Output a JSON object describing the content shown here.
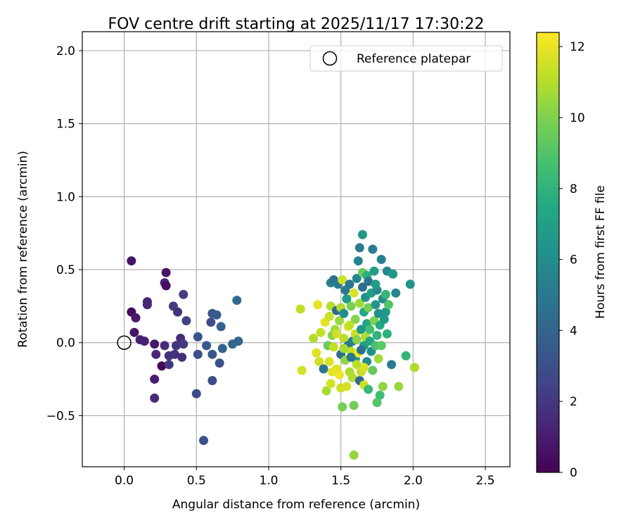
{
  "chart_data": {
    "type": "scatter",
    "title": "FOV centre drift starting at 2025/11/17 17:30:22",
    "xlabel": "Angular distance from reference (arcmin)",
    "ylabel": "Rotation from reference (arcmin)",
    "xlim": [
      -0.29,
      2.67
    ],
    "ylim": [
      -0.85,
      2.13
    ],
    "xticks": [
      0.0,
      0.5,
      1.0,
      1.5,
      2.0,
      2.5
    ],
    "xtick_labels": [
      "0.0",
      "0.5",
      "1.0",
      "1.5",
      "2.0",
      "2.5"
    ],
    "yticks": [
      -0.5,
      0.0,
      0.5,
      1.0,
      1.5,
      2.0
    ],
    "ytick_labels": [
      "−0.5",
      "0.0",
      "0.5",
      "1.0",
      "1.5",
      "2.0"
    ],
    "grid": true,
    "legend": {
      "location": "top-right",
      "entries": [
        "Reference platepar"
      ]
    },
    "reference_point": {
      "x": 0.0,
      "y": 0.0,
      "label": "Reference platepar",
      "marker": "open-circle"
    },
    "colorbar": {
      "label": "Hours from first FF file",
      "colormap": "viridis",
      "range": [
        0,
        12.4
      ],
      "ticks": [
        0,
        2,
        4,
        6,
        8,
        10,
        12
      ],
      "tick_labels": [
        "0",
        "2",
        "4",
        "6",
        "8",
        "10",
        "12"
      ]
    },
    "points": [
      {
        "x": 0.05,
        "y": 0.56,
        "h": 0.6
      },
      {
        "x": 0.05,
        "y": 0.21,
        "h": 0.4
      },
      {
        "x": 0.07,
        "y": 0.07,
        "h": 0.7
      },
      {
        "x": 0.08,
        "y": 0.17,
        "h": 0.9
      },
      {
        "x": 0.11,
        "y": 0.02,
        "h": 1.0
      },
      {
        "x": 0.14,
        "y": 0.01,
        "h": 1.1
      },
      {
        "x": 0.16,
        "y": 0.28,
        "h": 1.3
      },
      {
        "x": 0.16,
        "y": 0.26,
        "h": 1.4
      },
      {
        "x": 0.21,
        "y": -0.01,
        "h": 0.8
      },
      {
        "x": 0.21,
        "y": -0.25,
        "h": 1.0
      },
      {
        "x": 0.21,
        "y": -0.38,
        "h": 1.5
      },
      {
        "x": 0.22,
        "y": -0.08,
        "h": 1.3
      },
      {
        "x": 0.26,
        "y": -0.16,
        "h": 0.2
      },
      {
        "x": 0.28,
        "y": -0.02,
        "h": 1.6
      },
      {
        "x": 0.28,
        "y": 0.41,
        "h": 1.2
      },
      {
        "x": 0.29,
        "y": 0.39,
        "h": 0.5
      },
      {
        "x": 0.29,
        "y": 0.48,
        "h": 0.7
      },
      {
        "x": 0.31,
        "y": -0.15,
        "h": 2.0
      },
      {
        "x": 0.31,
        "y": -0.09,
        "h": 1.8
      },
      {
        "x": 0.34,
        "y": 0.25,
        "h": 2.1
      },
      {
        "x": 0.35,
        "y": -0.08,
        "h": 1.7
      },
      {
        "x": 0.36,
        "y": -0.02,
        "h": 1.9
      },
      {
        "x": 0.37,
        "y": 0.21,
        "h": 1.8
      },
      {
        "x": 0.39,
        "y": 0.03,
        "h": 1.6
      },
      {
        "x": 0.4,
        "y": -0.1,
        "h": 1.7
      },
      {
        "x": 0.41,
        "y": -0.01,
        "h": 2.2
      },
      {
        "x": 0.41,
        "y": 0.33,
        "h": 2.3
      },
      {
        "x": 0.43,
        "y": 0.15,
        "h": 2.4
      },
      {
        "x": 0.5,
        "y": -0.35,
        "h": 2.8
      },
      {
        "x": 0.51,
        "y": -0.08,
        "h": 3.0
      },
      {
        "x": 0.51,
        "y": 0.04,
        "h": 3.2
      },
      {
        "x": 0.55,
        "y": -0.67,
        "h": 3.1
      },
      {
        "x": 0.57,
        "y": -0.02,
        "h": 3.5
      },
      {
        "x": 0.6,
        "y": 0.14,
        "h": 2.9
      },
      {
        "x": 0.61,
        "y": 0.2,
        "h": 3.3
      },
      {
        "x": 0.61,
        "y": -0.08,
        "h": 3.4
      },
      {
        "x": 0.61,
        "y": -0.26,
        "h": 3.0
      },
      {
        "x": 0.64,
        "y": 0.19,
        "h": 3.6
      },
      {
        "x": 0.66,
        "y": -0.14,
        "h": 3.2
      },
      {
        "x": 0.67,
        "y": 0.11,
        "h": 3.8
      },
      {
        "x": 0.68,
        "y": -0.04,
        "h": 3.9
      },
      {
        "x": 0.75,
        "y": -0.01,
        "h": 4.1
      },
      {
        "x": 0.78,
        "y": 0.29,
        "h": 4.2
      },
      {
        "x": 0.79,
        "y": 0.01,
        "h": 4.0
      },
      {
        "x": 1.22,
        "y": 0.23,
        "h": 11.2
      },
      {
        "x": 1.23,
        "y": -0.19,
        "h": 11.6
      },
      {
        "x": 1.31,
        "y": 0.03,
        "h": 11.0
      },
      {
        "x": 1.33,
        "y": -0.07,
        "h": 11.8
      },
      {
        "x": 1.34,
        "y": 0.26,
        "h": 12.0
      },
      {
        "x": 1.35,
        "y": -0.13,
        "h": 11.5
      },
      {
        "x": 1.36,
        "y": 0.07,
        "h": 11.3
      },
      {
        "x": 1.39,
        "y": 0.14,
        "h": 11.9
      },
      {
        "x": 1.38,
        "y": -0.18,
        "h": 4.8
      },
      {
        "x": 1.4,
        "y": -0.33,
        "h": 10.8
      },
      {
        "x": 1.41,
        "y": -0.02,
        "h": 9.6
      },
      {
        "x": 1.42,
        "y": 0.18,
        "h": 11.4
      },
      {
        "x": 1.42,
        "y": -0.13,
        "h": 11.7
      },
      {
        "x": 1.43,
        "y": -0.28,
        "h": 11.6
      },
      {
        "x": 1.43,
        "y": 0.41,
        "h": 5.4
      },
      {
        "x": 1.43,
        "y": 0.25,
        "h": 11.0
      },
      {
        "x": 1.44,
        "y": 0.05,
        "h": 10.2
      },
      {
        "x": 1.45,
        "y": -0.03,
        "h": 11.3
      },
      {
        "x": 1.45,
        "y": 0.43,
        "h": 4.6
      },
      {
        "x": 1.46,
        "y": 0.09,
        "h": 10.6
      },
      {
        "x": 1.47,
        "y": -0.18,
        "h": 11.8
      },
      {
        "x": 1.47,
        "y": 0.22,
        "h": 4.3
      },
      {
        "x": 1.48,
        "y": 0.4,
        "h": 5.0
      },
      {
        "x": 1.49,
        "y": 0.15,
        "h": 10.5
      },
      {
        "x": 1.49,
        "y": -0.22,
        "h": 12.1
      },
      {
        "x": 1.5,
        "y": -0.31,
        "h": 11.5
      },
      {
        "x": 1.5,
        "y": -0.08,
        "h": 4.4
      },
      {
        "x": 1.5,
        "y": 0.24,
        "h": 10.9
      },
      {
        "x": 1.51,
        "y": 0.43,
        "h": 11.4
      },
      {
        "x": 1.51,
        "y": -0.44,
        "h": 9.8
      },
      {
        "x": 1.52,
        "y": 0.2,
        "h": 6.0
      },
      {
        "x": 1.52,
        "y": 0.03,
        "h": 11.1
      },
      {
        "x": 1.53,
        "y": -0.12,
        "h": 10.3
      },
      {
        "x": 1.54,
        "y": -0.3,
        "h": 11.6
      },
      {
        "x": 1.54,
        "y": 0.3,
        "h": 6.8
      },
      {
        "x": 1.55,
        "y": -0.02,
        "h": 4.7
      },
      {
        "x": 1.55,
        "y": 0.11,
        "h": 11.9
      },
      {
        "x": 1.56,
        "y": 0.4,
        "h": 4.9
      },
      {
        "x": 1.56,
        "y": -0.2,
        "h": 10.8
      },
      {
        "x": 1.57,
        "y": 0.25,
        "h": 9.9
      },
      {
        "x": 1.57,
        "y": -0.06,
        "h": 11.2
      },
      {
        "x": 1.58,
        "y": 0.01,
        "h": 5.3
      },
      {
        "x": 1.58,
        "y": -0.24,
        "h": 11.0
      },
      {
        "x": 1.59,
        "y": 0.34,
        "h": 11.7
      },
      {
        "x": 1.59,
        "y": -0.43,
        "h": 9.7
      },
      {
        "x": 1.59,
        "y": -0.77,
        "h": 10.4
      },
      {
        "x": 1.6,
        "y": 0.16,
        "h": 10.1
      },
      {
        "x": 1.6,
        "y": -0.11,
        "h": 6.2
      },
      {
        "x": 1.6,
        "y": 0.06,
        "h": 11.4
      },
      {
        "x": 1.61,
        "y": -0.15,
        "h": 11.1
      },
      {
        "x": 1.61,
        "y": 0.44,
        "h": 5.6
      },
      {
        "x": 1.62,
        "y": 0.56,
        "h": 5.5
      },
      {
        "x": 1.62,
        "y": -0.07,
        "h": 12.2
      },
      {
        "x": 1.63,
        "y": 0.27,
        "h": 10.6
      },
      {
        "x": 1.63,
        "y": -0.26,
        "h": 4.2
      },
      {
        "x": 1.63,
        "y": 0.65,
        "h": 5.1
      },
      {
        "x": 1.64,
        "y": 0.09,
        "h": 6.5
      },
      {
        "x": 1.64,
        "y": -0.2,
        "h": 11.3
      },
      {
        "x": 1.65,
        "y": 0.48,
        "h": 9.5
      },
      {
        "x": 1.65,
        "y": 0.38,
        "h": 4.5
      },
      {
        "x": 1.65,
        "y": 0.74,
        "h": 6.6
      },
      {
        "x": 1.66,
        "y": -0.02,
        "h": 6.9
      },
      {
        "x": 1.66,
        "y": 0.21,
        "h": 7.5
      },
      {
        "x": 1.66,
        "y": -0.29,
        "h": 11.5
      },
      {
        "x": 1.67,
        "y": 0.31,
        "h": 6.3
      },
      {
        "x": 1.67,
        "y": 0.04,
        "h": 10.9
      },
      {
        "x": 1.68,
        "y": 0.13,
        "h": 7.2
      },
      {
        "x": 1.68,
        "y": -0.13,
        "h": 6.0
      },
      {
        "x": 1.68,
        "y": 0.46,
        "h": 7.8
      },
      {
        "x": 1.69,
        "y": -0.32,
        "h": 8.3
      },
      {
        "x": 1.69,
        "y": 0.24,
        "h": 9.8
      },
      {
        "x": 1.7,
        "y": 0.01,
        "h": 7.4
      },
      {
        "x": 1.7,
        "y": 0.09,
        "h": 8.6
      },
      {
        "x": 1.71,
        "y": -0.06,
        "h": 6.1
      },
      {
        "x": 1.71,
        "y": 0.34,
        "h": 7.0
      },
      {
        "x": 1.72,
        "y": 0.64,
        "h": 5.2
      },
      {
        "x": 1.72,
        "y": -0.19,
        "h": 9.4
      },
      {
        "x": 1.73,
        "y": 0.15,
        "h": 10.0
      },
      {
        "x": 1.73,
        "y": 0.49,
        "h": 6.7
      },
      {
        "x": 1.74,
        "y": -0.02,
        "h": 8.8
      },
      {
        "x": 1.74,
        "y": 0.26,
        "h": 6.4
      },
      {
        "x": 1.75,
        "y": 0.05,
        "h": 8.0
      },
      {
        "x": 1.75,
        "y": -0.41,
        "h": 9.1
      },
      {
        "x": 1.75,
        "y": 0.36,
        "h": 5.8
      },
      {
        "x": 1.76,
        "y": -0.11,
        "h": 10.7
      },
      {
        "x": 1.76,
        "y": 0.2,
        "h": 6.2
      },
      {
        "x": 1.77,
        "y": -0.36,
        "h": 8.5
      },
      {
        "x": 1.77,
        "y": 0.12,
        "h": 7.6
      },
      {
        "x": 1.78,
        "y": 0.57,
        "h": 5.3
      },
      {
        "x": 1.78,
        "y": -0.02,
        "h": 9.2
      },
      {
        "x": 1.79,
        "y": 0.3,
        "h": 5.9
      },
      {
        "x": 1.79,
        "y": -0.3,
        "h": 10.3
      },
      {
        "x": 1.8,
        "y": 0.16,
        "h": 6.8
      },
      {
        "x": 1.81,
        "y": 0.33,
        "h": 8.2
      },
      {
        "x": 1.81,
        "y": 0.21,
        "h": 6.6
      },
      {
        "x": 1.82,
        "y": 0.49,
        "h": 5.7
      },
      {
        "x": 1.82,
        "y": 0.06,
        "h": 7.9
      },
      {
        "x": 1.83,
        "y": 0.26,
        "h": 9.0
      },
      {
        "x": 1.85,
        "y": -0.15,
        "h": 5.1
      },
      {
        "x": 1.86,
        "y": 0.47,
        "h": 6.5
      },
      {
        "x": 1.88,
        "y": 0.34,
        "h": 5.6
      },
      {
        "x": 1.9,
        "y": -0.3,
        "h": 10.5
      },
      {
        "x": 1.95,
        "y": -0.09,
        "h": 8.1
      },
      {
        "x": 1.98,
        "y": 0.4,
        "h": 6.3
      },
      {
        "x": 2.01,
        "y": -0.17,
        "h": 10.9
      },
      {
        "x": 1.44,
        "y": -0.2,
        "h": 11.9
      },
      {
        "x": 1.47,
        "y": 0.06,
        "h": 11.5
      },
      {
        "x": 1.52,
        "y": -0.04,
        "h": 10.7
      },
      {
        "x": 1.56,
        "y": 0.12,
        "h": 11.2
      },
      {
        "x": 1.61,
        "y": 0.02,
        "h": 10.2
      },
      {
        "x": 1.57,
        "y": -0.1,
        "h": 5.0
      },
      {
        "x": 1.64,
        "y": -0.05,
        "h": 4.6
      },
      {
        "x": 1.53,
        "y": 0.36,
        "h": 4.9
      },
      {
        "x": 1.69,
        "y": 0.42,
        "h": 4.7
      },
      {
        "x": 1.66,
        "y": -0.17,
        "h": 11.7
      },
      {
        "x": 1.74,
        "y": 0.4,
        "h": 6.9
      }
    ]
  }
}
